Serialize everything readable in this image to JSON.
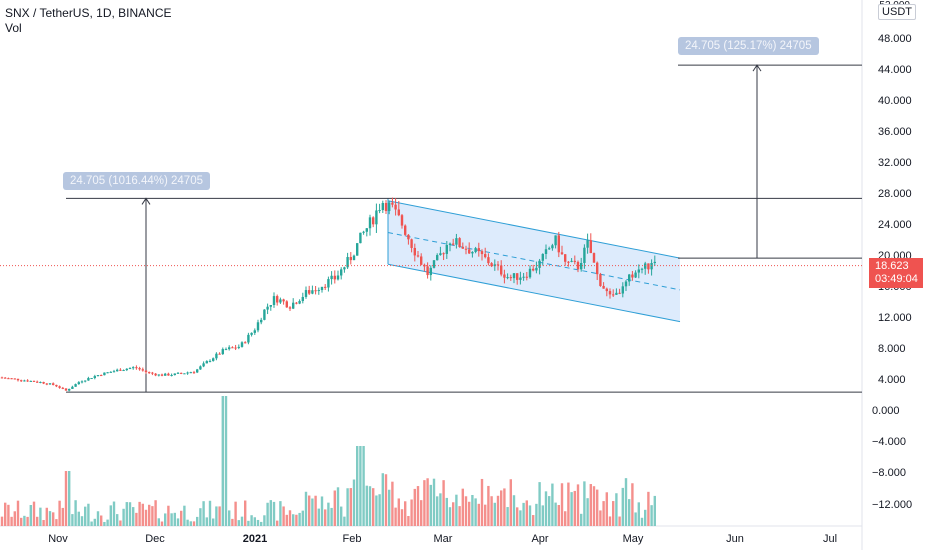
{
  "legend": {
    "symbol": "SNX / TetherUS, 1D, BINANCE",
    "volume": "Vol"
  },
  "currency_button": "USDT",
  "currency_top_label": "52.000",
  "measure_labels": {
    "left": "24.705 (1016.44%) 24705",
    "right": "24.705 (125.17%) 24705"
  },
  "last_price": {
    "value": "18.623",
    "countdown": "03:49:04"
  },
  "colors": {
    "up": "#26a69a",
    "down": "#ef5350",
    "volume_up": "#80cbc4",
    "volume_down": "#f48f8c",
    "channel_fill": "#d7e8fb",
    "channel_line": "#2f9fd6",
    "price_line": "#ef5350",
    "tag_bg": "#b6c6e0"
  },
  "chart_data": {
    "type": "candlestick",
    "title": "SNX / TetherUS, 1D, BINANCE",
    "price_axis_ticks": [
      "48.000",
      "44.000",
      "40.000",
      "36.000",
      "32.000",
      "28.000",
      "24.000",
      "20.000",
      "16.000",
      "12.000",
      "8.000",
      "4.000"
    ],
    "volume_axis_ticks": [
      "0.000",
      "−4.000",
      "−8.000",
      "−12.000"
    ],
    "time_axis_ticks": [
      "Nov",
      "Dec",
      "2021",
      "Feb",
      "Mar",
      "Apr",
      "May",
      "Jun",
      "Jul"
    ],
    "price_range": [
      0,
      52
    ],
    "horizontal_lines": [
      27.3,
      2.3,
      19.6,
      44.5
    ],
    "price_path": [
      [
        0,
        4.2
      ],
      [
        20,
        3.9
      ],
      [
        40,
        3.6
      ],
      [
        55,
        3.2
      ],
      [
        66,
        2.5
      ],
      [
        80,
        3.7
      ],
      [
        100,
        4.6
      ],
      [
        120,
        5.2
      ],
      [
        135,
        5.5
      ],
      [
        148,
        4.8
      ],
      [
        160,
        4.5
      ],
      [
        175,
        4.6
      ],
      [
        195,
        5.0
      ],
      [
        210,
        6.5
      ],
      [
        225,
        7.8
      ],
      [
        240,
        8.2
      ],
      [
        255,
        10.5
      ],
      [
        265,
        13.0
      ],
      [
        275,
        14.5
      ],
      [
        290,
        13.5
      ],
      [
        305,
        15.0
      ],
      [
        320,
        16.0
      ],
      [
        335,
        17.0
      ],
      [
        350,
        19.5
      ],
      [
        362,
        22.5
      ],
      [
        372,
        24.5
      ],
      [
        382,
        27.0
      ],
      [
        392,
        26.0
      ],
      [
        402,
        24.0
      ],
      [
        415,
        20.5
      ],
      [
        428,
        17.5
      ],
      [
        438,
        19.5
      ],
      [
        450,
        22.0
      ],
      [
        465,
        21.0
      ],
      [
        480,
        20.0
      ],
      [
        495,
        18.5
      ],
      [
        510,
        17.0
      ],
      [
        525,
        17.5
      ],
      [
        540,
        19.0
      ],
      [
        555,
        22.0
      ],
      [
        565,
        19.0
      ],
      [
        578,
        18.5
      ],
      [
        588,
        21.5
      ],
      [
        598,
        17.0
      ],
      [
        610,
        14.5
      ],
      [
        622,
        15.5
      ],
      [
        632,
        17.5
      ],
      [
        645,
        18.5
      ],
      [
        655,
        18.6
      ]
    ],
    "channel": {
      "upper": [
        [
          388,
          27.0
        ],
        [
          680,
          19.6
        ]
      ],
      "lower": [
        [
          388,
          18.8
        ],
        [
          680,
          11.4
        ]
      ]
    },
    "last_value": 18.623
  }
}
